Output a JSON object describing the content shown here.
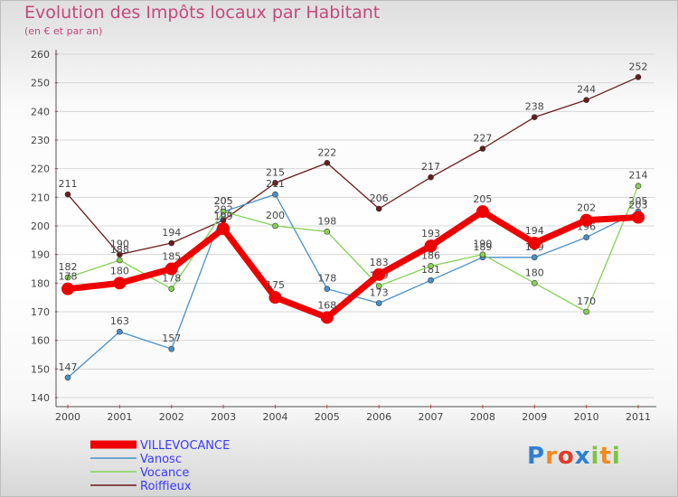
{
  "header": {
    "title": "Evolution des Impôts locaux par Habitant",
    "subtitle": "(en € et par an)"
  },
  "chart_data": {
    "type": "line",
    "title": "Evolution des Impôts locaux par Habitant",
    "subtitle": "(en € et par an)",
    "xlabel": "",
    "ylabel": "",
    "x": [
      2000,
      2001,
      2002,
      2003,
      2004,
      2005,
      2006,
      2007,
      2008,
      2009,
      2010,
      2011
    ],
    "ylim": [
      140,
      260
    ],
    "yticks": [
      140,
      150,
      160,
      170,
      180,
      190,
      200,
      210,
      220,
      230,
      240,
      250,
      260
    ],
    "grid": "horizontal",
    "legend_position": "bottom-left",
    "series": [
      {
        "name": "Roiffieux",
        "color": "#6b1b1b",
        "values": [
          211,
          190,
          194,
          202,
          215,
          222,
          206,
          217,
          227,
          238,
          244,
          252
        ]
      },
      {
        "name": "Vanosc",
        "color": "#4a90c8",
        "values": [
          147,
          163,
          157,
          205,
          211,
          178,
          173,
          181,
          189,
          189,
          196,
          205
        ]
      },
      {
        "name": "Vocance",
        "color": "#86d156",
        "values": [
          182,
          188,
          178,
          205,
          200,
          198,
          179,
          186,
          190,
          180,
          170,
          214
        ]
      },
      {
        "name": "VILLEVOCANCE",
        "color": "#ee0000",
        "values": [
          178,
          180,
          185,
          199,
          175,
          168,
          183,
          193,
          205,
          194,
          202,
          203
        ]
      }
    ],
    "legend_order": [
      "VILLEVOCANCE",
      "Vanosc",
      "Vocance",
      "Roiffieux"
    ]
  },
  "logo": {
    "letters": [
      "P",
      "r",
      "o",
      "x",
      "i",
      "t",
      "i"
    ],
    "colors": [
      "#2f7fd3",
      "#f08a1c",
      "#e03a2a",
      "#2f7fd3",
      "#7cc444",
      "#f08a1c",
      "#7cc444"
    ]
  }
}
